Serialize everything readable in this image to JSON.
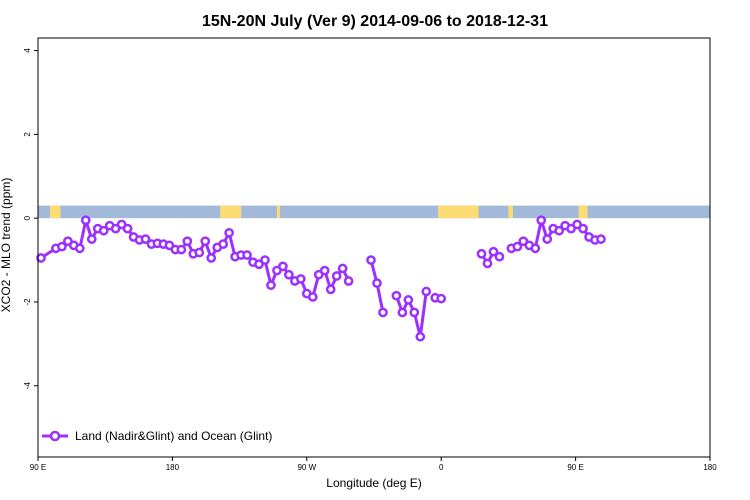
{
  "chart_data": {
    "type": "line",
    "title": "15N-20N July (Ver 9)   2014-09-06 to 2018-12-31",
    "xlabel": "Longitude (deg E)",
    "ylabel": "XCO2 - MLO trend (ppm)",
    "xlim": [
      90,
      450
    ],
    "ylim": [
      -5.7,
      4.3
    ],
    "x_ticks": [
      {
        "value": 90,
        "label": "90 E"
      },
      {
        "value": 180,
        "label": "180"
      },
      {
        "value": 270,
        "label": "90 W"
      },
      {
        "value": 360,
        "label": "0"
      },
      {
        "value": 450,
        "label": "90 E"
      },
      {
        "value": 540,
        "label": "180"
      }
    ],
    "y_ticks": [
      {
        "value": -4,
        "label": "-4"
      },
      {
        "value": -2,
        "label": "-2"
      },
      {
        "value": 0,
        "label": "0"
      },
      {
        "value": 2,
        "label": "2"
      },
      {
        "value": 4,
        "label": "4"
      }
    ],
    "x_range_shown": [
      90,
      540
    ],
    "legend": {
      "position": "bottom-left",
      "entries": [
        "Land (Nadir&Glint) and Ocean (Glint)"
      ]
    },
    "land_ocean_band": {
      "y_range": [
        0.0,
        0.3
      ],
      "ocean_color": "#a3b9d9",
      "land_color": "#fcdc73"
    },
    "series": [
      {
        "name": "Land (Nadir&Glint) and Ocean (Glint)",
        "color": "#9b30ff",
        "segments": [
          [
            [
              92,
              -0.95
            ],
            [
              102,
              -0.72
            ],
            [
              106,
              -0.68
            ],
            [
              110,
              -0.55
            ],
            [
              114,
              -0.65
            ],
            [
              118,
              -0.72
            ],
            [
              122,
              -0.05
            ],
            [
              126,
              -0.5
            ],
            [
              130,
              -0.25
            ],
            [
              134,
              -0.3
            ],
            [
              138,
              -0.18
            ],
            [
              142,
              -0.25
            ],
            [
              146,
              -0.15
            ],
            [
              150,
              -0.25
            ],
            [
              154,
              -0.45
            ],
            [
              158,
              -0.52
            ],
            [
              162,
              -0.5
            ],
            [
              166,
              -0.62
            ],
            [
              170,
              -0.6
            ],
            [
              174,
              -0.62
            ],
            [
              178,
              -0.65
            ],
            [
              182,
              -0.75
            ],
            [
              186,
              -0.75
            ],
            [
              190,
              -0.55
            ],
            [
              194,
              -0.85
            ],
            [
              198,
              -0.82
            ],
            [
              202,
              -0.55
            ],
            [
              206,
              -0.95
            ],
            [
              210,
              -0.7
            ],
            [
              214,
              -0.62
            ],
            [
              218,
              -0.35
            ],
            [
              222,
              -0.92
            ],
            [
              226,
              -0.88
            ],
            [
              230,
              -0.88
            ],
            [
              234,
              -1.05
            ],
            [
              238,
              -1.1
            ],
            [
              242,
              -1.0
            ],
            [
              246,
              -1.6
            ],
            [
              250,
              -1.25
            ],
            [
              254,
              -1.15
            ],
            [
              258,
              -1.35
            ],
            [
              262,
              -1.5
            ],
            [
              266,
              -1.45
            ],
            [
              270,
              -1.8
            ],
            [
              274,
              -1.88
            ],
            [
              278,
              -1.35
            ],
            [
              282,
              -1.25
            ],
            [
              286,
              -1.7
            ],
            [
              290,
              -1.38
            ],
            [
              294,
              -1.2
            ],
            [
              298,
              -1.5
            ]
          ],
          [
            [
              313,
              -1.0
            ],
            [
              317,
              -1.55
            ],
            [
              321,
              -2.25
            ]
          ],
          [
            [
              330,
              -1.85
            ],
            [
              334,
              -2.25
            ],
            [
              338,
              -1.95
            ],
            [
              342,
              -2.25
            ],
            [
              346,
              -2.83
            ],
            [
              350,
              -1.75
            ]
          ],
          [
            [
              356,
              -1.9
            ],
            [
              360,
              -1.92
            ]
          ],
          [
            [
              387,
              -0.85
            ],
            [
              391,
              -1.08
            ],
            [
              395,
              -0.8
            ],
            [
              399,
              -0.92
            ]
          ],
          [
            [
              407,
              -0.72
            ],
            [
              411,
              -0.68
            ],
            [
              415,
              -0.55
            ],
            [
              419,
              -0.65
            ],
            [
              423,
              -0.72
            ],
            [
              427,
              -0.05
            ],
            [
              431,
              -0.5
            ],
            [
              435,
              -0.25
            ],
            [
              439,
              -0.3
            ],
            [
              443,
              -0.18
            ],
            [
              447,
              -0.25
            ],
            [
              451,
              -0.15
            ],
            [
              455,
              -0.25
            ],
            [
              459,
              -0.45
            ],
            [
              463,
              -0.52
            ],
            [
              467,
              -0.5
            ]
          ]
        ]
      }
    ]
  }
}
